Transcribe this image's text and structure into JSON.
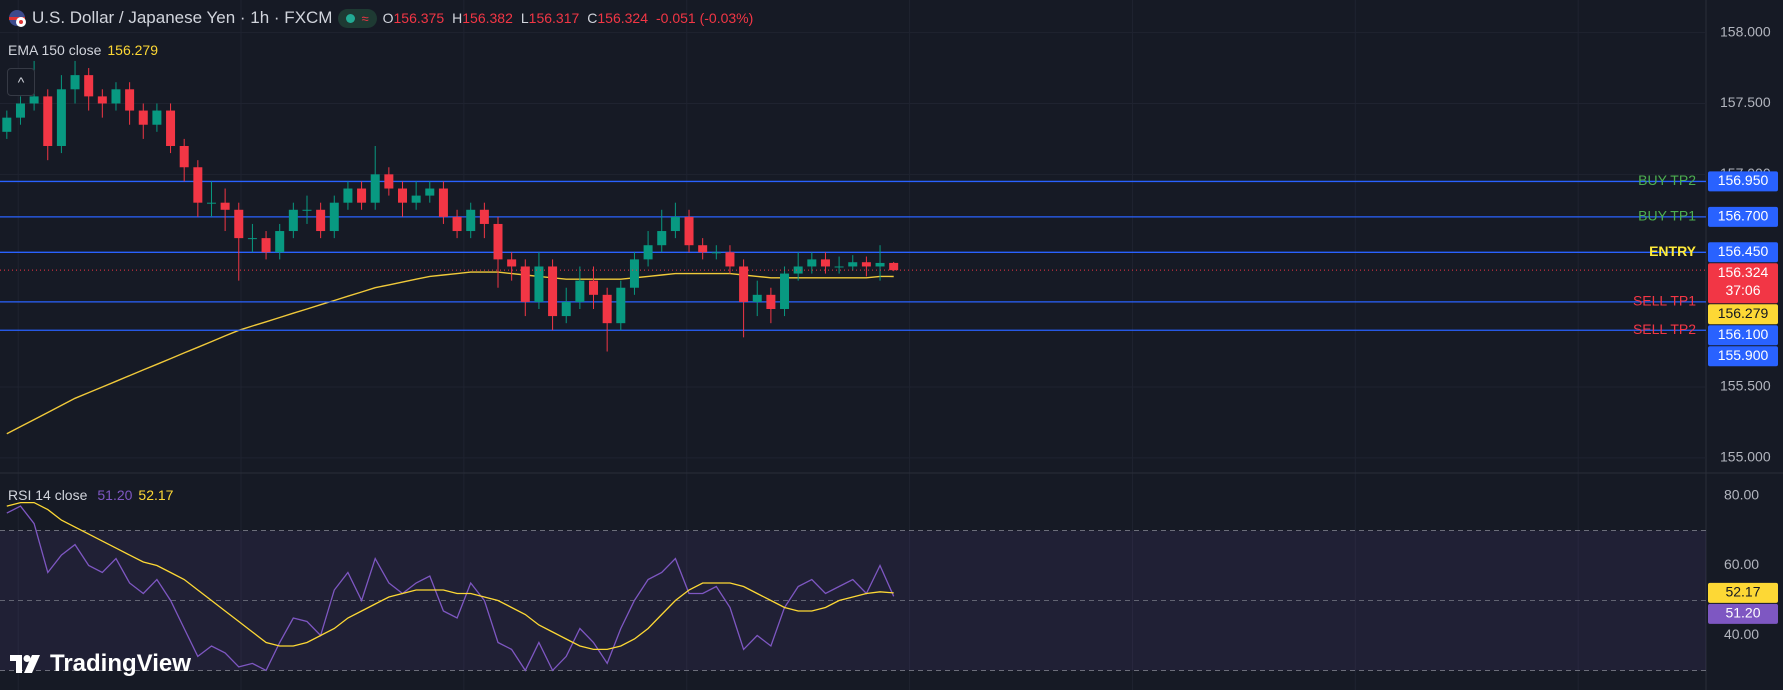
{
  "chart_data": [
    {
      "type": "candlestick",
      "title": "U.S. Dollar / Japanese Yen · 1h · FXCM",
      "legend": {
        "open_label": "O",
        "open": 156.375,
        "high_label": "H",
        "high": 156.382,
        "low_label": "L",
        "low": 156.317,
        "close_label": "C",
        "close": 156.324,
        "change": "-0.051 (-0.03%)"
      },
      "open": [
        157.3,
        157.4,
        157.5,
        157.55,
        157.2,
        157.6,
        157.7,
        157.55,
        157.5,
        157.6,
        157.45,
        157.35,
        157.45,
        157.2,
        157.05,
        156.8,
        156.8,
        156.75,
        156.55,
        156.55,
        156.45,
        156.6,
        156.75,
        156.75,
        156.6,
        156.8,
        156.9,
        156.8,
        157.0,
        156.9,
        156.8,
        156.85,
        156.9,
        156.7,
        156.6,
        156.75,
        156.65,
        156.4,
        156.35,
        156.1,
        156.35,
        156.0,
        156.1,
        156.25,
        156.15,
        155.95,
        156.2,
        156.4,
        156.5,
        156.6,
        156.7,
        156.5,
        156.45,
        156.45,
        156.35,
        156.1,
        156.15,
        156.05,
        156.3,
        156.35,
        156.4,
        156.35,
        156.35,
        156.38,
        156.35,
        156.375
      ],
      "high": [
        157.45,
        157.55,
        157.8,
        157.6,
        157.7,
        157.8,
        157.75,
        157.6,
        157.65,
        157.65,
        157.5,
        157.5,
        157.5,
        157.25,
        157.1,
        156.95,
        156.9,
        156.8,
        156.65,
        156.6,
        156.65,
        156.8,
        156.85,
        156.8,
        156.85,
        156.95,
        156.95,
        157.2,
        157.05,
        156.95,
        156.95,
        156.95,
        156.95,
        156.75,
        156.8,
        156.8,
        156.7,
        156.45,
        156.4,
        156.45,
        156.4,
        156.2,
        156.35,
        156.35,
        156.2,
        156.25,
        156.45,
        156.6,
        156.75,
        156.8,
        156.75,
        156.55,
        156.5,
        156.5,
        156.4,
        156.25,
        156.2,
        156.35,
        156.45,
        156.45,
        156.45,
        156.42,
        156.43,
        156.42,
        156.5,
        156.382
      ],
      "low": [
        157.25,
        157.35,
        157.45,
        157.1,
        157.15,
        157.5,
        157.45,
        157.4,
        157.45,
        157.35,
        157.25,
        157.3,
        157.15,
        156.95,
        156.7,
        156.7,
        156.6,
        156.25,
        156.45,
        156.4,
        156.4,
        156.55,
        156.65,
        156.55,
        156.55,
        156.75,
        156.75,
        156.75,
        156.85,
        156.7,
        156.75,
        156.8,
        156.65,
        156.55,
        156.55,
        156.55,
        156.2,
        156.25,
        156.0,
        156.05,
        155.9,
        155.95,
        156.05,
        156.05,
        155.75,
        155.9,
        156.15,
        156.35,
        156.45,
        156.55,
        156.45,
        156.4,
        156.4,
        156.3,
        155.85,
        156.0,
        155.95,
        156.0,
        156.25,
        156.3,
        156.3,
        156.3,
        156.32,
        156.28,
        156.25,
        156.317
      ],
      "close": [
        157.4,
        157.5,
        157.55,
        157.2,
        157.6,
        157.7,
        157.55,
        157.5,
        157.6,
        157.45,
        157.35,
        157.45,
        157.2,
        157.05,
        156.8,
        156.8,
        156.75,
        156.55,
        156.55,
        156.45,
        156.6,
        156.75,
        156.75,
        156.6,
        156.8,
        156.9,
        156.8,
        157.0,
        156.9,
        156.8,
        156.85,
        156.9,
        156.7,
        156.6,
        156.75,
        156.65,
        156.4,
        156.35,
        156.1,
        156.35,
        156.0,
        156.1,
        156.25,
        156.15,
        155.95,
        156.2,
        156.4,
        156.5,
        156.6,
        156.7,
        156.5,
        156.45,
        156.45,
        156.35,
        156.1,
        156.15,
        156.05,
        156.3,
        156.35,
        156.4,
        156.35,
        156.35,
        156.38,
        156.35,
        156.375,
        156.324
      ],
      "up_color": "#089981",
      "down_color": "#f23645",
      "ema": {
        "name": "EMA 150 close",
        "color": "#f0c93a",
        "values": [
          155.17,
          155.22,
          155.27,
          155.32,
          155.37,
          155.42,
          155.46,
          155.5,
          155.54,
          155.58,
          155.62,
          155.66,
          155.7,
          155.74,
          155.78,
          155.82,
          155.86,
          155.9,
          155.93,
          155.96,
          155.99,
          156.02,
          156.05,
          156.08,
          156.11,
          156.14,
          156.17,
          156.2,
          156.22,
          156.24,
          156.26,
          156.28,
          156.29,
          156.3,
          156.31,
          156.31,
          156.31,
          156.3,
          156.29,
          156.28,
          156.27,
          156.26,
          156.26,
          156.26,
          156.26,
          156.26,
          156.27,
          156.28,
          156.29,
          156.3,
          156.3,
          156.3,
          156.3,
          156.3,
          156.29,
          156.28,
          156.27,
          156.27,
          156.27,
          156.27,
          156.27,
          156.27,
          156.27,
          156.27,
          156.28,
          156.279
        ]
      },
      "countdown": "37:06",
      "levels": [
        {
          "name": "BUY TP2",
          "value": 156.95,
          "label": "156.950",
          "color": "#4caf50"
        },
        {
          "name": "BUY TP1",
          "value": 156.7,
          "label": "156.700",
          "color": "#4caf50"
        },
        {
          "name": "ENTRY",
          "value": 156.45,
          "label": "156.450",
          "color": "#ffeb3b"
        },
        {
          "name": "SELL TP1",
          "value": 156.1,
          "label": "156.100",
          "color": "#f23645"
        },
        {
          "name": "SELL TP2",
          "value": 155.9,
          "label": "155.900",
          "color": "#f23645"
        }
      ],
      "level_line_color": "#2962ff",
      "ylim": [
        154.9,
        158.23
      ],
      "yticks": [
        {
          "value": 158,
          "label": "158.000"
        },
        {
          "value": 157.5,
          "label": "157.500"
        },
        {
          "value": 157,
          "label": "157.000"
        },
        {
          "value": 155.5,
          "label": "155.500"
        },
        {
          "value": 155,
          "label": "155.000"
        }
      ],
      "grid": true
    },
    {
      "type": "line",
      "title": "RSI 14 close",
      "series": [
        {
          "color": "#7e57c2",
          "last_label": "51.20",
          "values": [
            75,
            77,
            72,
            58,
            63,
            66,
            60,
            58,
            62,
            55,
            52,
            56,
            50,
            42,
            34,
            37,
            35,
            31,
            32,
            30,
            38,
            45,
            44,
            40,
            53,
            58,
            50,
            62,
            55,
            52,
            55,
            57,
            47,
            45,
            55,
            50,
            38,
            36,
            30,
            38,
            30,
            34,
            42,
            38,
            32,
            42,
            50,
            56,
            58,
            62,
            52,
            52,
            54,
            48,
            36,
            40,
            37,
            48,
            54,
            56,
            52,
            54,
            56,
            52,
            60,
            51.2
          ]
        },
        {
          "color": "#fdd835",
          "last_label": "52.17",
          "values": [
            77,
            78,
            78,
            76,
            73,
            71,
            69,
            67,
            65,
            63,
            61,
            60,
            58,
            56,
            53,
            50,
            47,
            44,
            41,
            38,
            37,
            37,
            38,
            40,
            42,
            45,
            47,
            49,
            51,
            52,
            53,
            53,
            53,
            52,
            52,
            51,
            50,
            48,
            46,
            43,
            41,
            39,
            37,
            36,
            36,
            37,
            39,
            42,
            46,
            50,
            53,
            55,
            55,
            55,
            54,
            52,
            50,
            48,
            47,
            47,
            48,
            50,
            51,
            52,
            52.5,
            52.17
          ]
        }
      ],
      "band": [
        30,
        70
      ],
      "guides": [
        70,
        50,
        30
      ],
      "ylim": [
        24.4,
        85.9
      ],
      "yticks": [
        {
          "value": 80,
          "label": "80.00"
        },
        {
          "value": 60,
          "label": "60.00"
        },
        {
          "value": 40,
          "label": "40.00"
        }
      ],
      "grid": true
    }
  ],
  "branding": "TradingView"
}
